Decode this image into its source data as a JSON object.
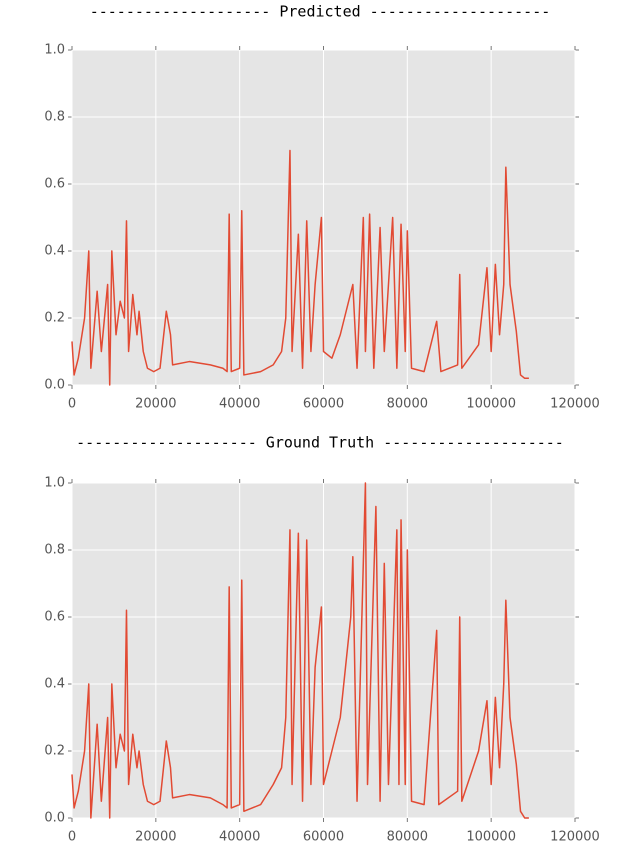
{
  "chart_data": [
    {
      "type": "line",
      "title": "-------------------- Predicted --------------------",
      "x": [
        0,
        500,
        1500,
        3000,
        4000,
        4500,
        6000,
        7000,
        8500,
        9000,
        9500,
        10500,
        11500,
        12500,
        13000,
        13500,
        14500,
        15500,
        16000,
        17000,
        18000,
        19500,
        21000,
        22500,
        23500,
        24000,
        28000,
        33000,
        36000,
        37000,
        37500,
        38000,
        40000,
        40500,
        41000,
        45000,
        48000,
        50000,
        51000,
        52000,
        52500,
        54000,
        55000,
        56000,
        57000,
        58000,
        59500,
        60000,
        62000,
        64000,
        67000,
        68000,
        69500,
        70000,
        71000,
        72000,
        73500,
        74500,
        76500,
        77500,
        78500,
        79500,
        80000,
        81000,
        84000,
        87000,
        88000,
        92000,
        92500,
        93000,
        97000,
        99000,
        100000,
        101000,
        102000,
        103000,
        103500,
        104500,
        106000,
        107000,
        108000,
        109000
      ],
      "series": [
        {
          "color": "#e24a33",
          "values": [
            0.13,
            0.03,
            0.08,
            0.2,
            0.4,
            0.05,
            0.28,
            0.1,
            0.3,
            0.0,
            0.4,
            0.15,
            0.25,
            0.2,
            0.49,
            0.1,
            0.27,
            0.15,
            0.22,
            0.1,
            0.05,
            0.04,
            0.05,
            0.22,
            0.15,
            0.06,
            0.07,
            0.06,
            0.05,
            0.04,
            0.51,
            0.04,
            0.05,
            0.52,
            0.03,
            0.04,
            0.06,
            0.1,
            0.2,
            0.7,
            0.1,
            0.45,
            0.05,
            0.49,
            0.1,
            0.3,
            0.5,
            0.1,
            0.08,
            0.15,
            0.3,
            0.05,
            0.5,
            0.1,
            0.51,
            0.05,
            0.47,
            0.1,
            0.5,
            0.05,
            0.48,
            0.1,
            0.46,
            0.05,
            0.04,
            0.19,
            0.04,
            0.06,
            0.33,
            0.05,
            0.12,
            0.35,
            0.1,
            0.36,
            0.15,
            0.3,
            0.65,
            0.3,
            0.16,
            0.03,
            0.02,
            0.02
          ]
        }
      ],
      "xlim": [
        0,
        120000
      ],
      "xticks": [
        0,
        20000,
        40000,
        60000,
        80000,
        100000,
        120000
      ],
      "ylim": [
        0,
        1
      ],
      "yticks": [
        {
          "value": 0,
          "label": "0.0"
        },
        0.2,
        0.4,
        0.6,
        0.8,
        {
          "value": 1,
          "label": "1.0"
        }
      ],
      "grid": true
    },
    {
      "type": "line",
      "title": "-------------------- Ground Truth --------------------",
      "x": [
        0,
        500,
        1500,
        3000,
        4000,
        4500,
        6000,
        7000,
        8500,
        9000,
        9500,
        10500,
        11500,
        12500,
        13000,
        13500,
        14500,
        15500,
        16000,
        17000,
        18000,
        19500,
        21000,
        22500,
        23500,
        24000,
        28000,
        33000,
        36000,
        37000,
        37500,
        38000,
        40000,
        40500,
        41000,
        45000,
        48000,
        50000,
        51000,
        52000,
        52500,
        54000,
        55000,
        56000,
        57000,
        58000,
        59500,
        60000,
        62000,
        64000,
        66500,
        67000,
        68000,
        70000,
        70500,
        72500,
        73500,
        74500,
        75500,
        77500,
        78000,
        78500,
        79500,
        80000,
        81000,
        84000,
        87000,
        87500,
        92000,
        92500,
        93000,
        97000,
        99000,
        100000,
        101000,
        102000,
        103000,
        103500,
        104500,
        106000,
        107000,
        108000,
        109000
      ],
      "series": [
        {
          "color": "#e24a33",
          "values": [
            0.13,
            0.03,
            0.08,
            0.2,
            0.4,
            0.0,
            0.28,
            0.05,
            0.3,
            0.0,
            0.4,
            0.15,
            0.25,
            0.2,
            0.62,
            0.1,
            0.25,
            0.15,
            0.2,
            0.1,
            0.05,
            0.04,
            0.05,
            0.23,
            0.15,
            0.06,
            0.07,
            0.06,
            0.04,
            0.03,
            0.69,
            0.03,
            0.04,
            0.71,
            0.02,
            0.04,
            0.1,
            0.15,
            0.3,
            0.86,
            0.1,
            0.85,
            0.05,
            0.83,
            0.1,
            0.45,
            0.63,
            0.1,
            0.2,
            0.3,
            0.6,
            0.78,
            0.05,
            1.0,
            0.1,
            0.93,
            0.05,
            0.76,
            0.1,
            0.86,
            0.1,
            0.89,
            0.1,
            0.8,
            0.05,
            0.04,
            0.56,
            0.04,
            0.08,
            0.6,
            0.05,
            0.2,
            0.35,
            0.1,
            0.36,
            0.15,
            0.4,
            0.65,
            0.3,
            0.16,
            0.02,
            0.0,
            0.0
          ]
        }
      ],
      "xlim": [
        0,
        120000
      ],
      "xticks": [
        0,
        20000,
        40000,
        60000,
        80000,
        100000,
        120000
      ],
      "ylim": [
        0,
        1
      ],
      "yticks": [
        {
          "value": 0,
          "label": "0.0"
        },
        0.2,
        0.4,
        0.6,
        0.8,
        {
          "value": 1,
          "label": "1.0"
        }
      ],
      "grid": true
    }
  ]
}
